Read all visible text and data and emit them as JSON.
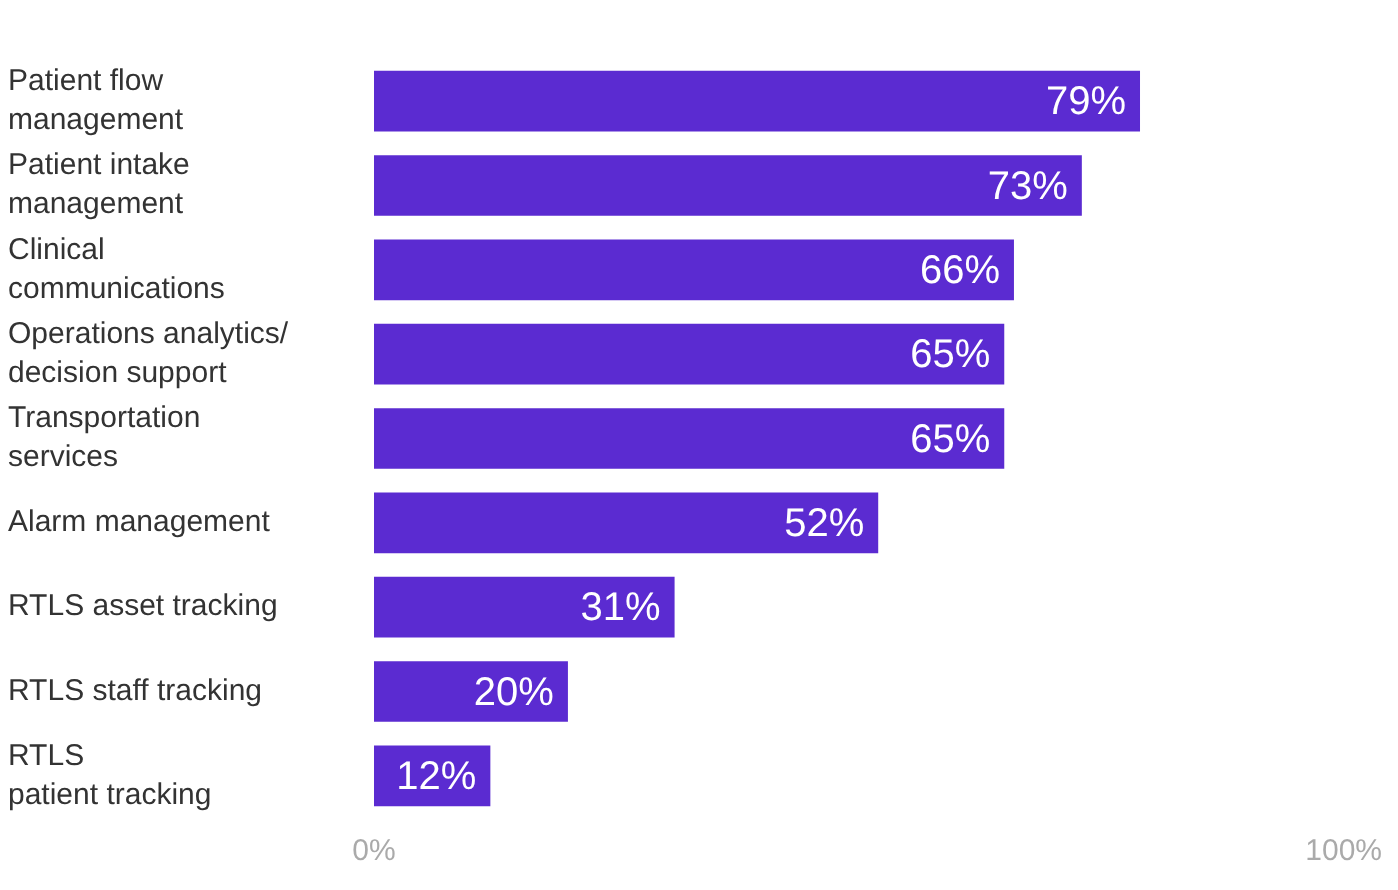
{
  "chart_data": {
    "type": "bar",
    "orientation": "horizontal",
    "categories": [
      "Patient flow\nmanagement",
      "Patient intake\nmanagement",
      "Clinical\ncommunications",
      "Operations analytics/\ndecision support",
      "Transportation\nservices",
      "Alarm management",
      "RTLS asset tracking",
      "RTLS staff tracking",
      "RTLS\npatient tracking"
    ],
    "values": [
      79,
      73,
      66,
      65,
      65,
      52,
      31,
      20,
      12
    ],
    "value_labels": [
      "79%",
      "73%",
      "66%",
      "65%",
      "65%",
      "52%",
      "31%",
      "20%",
      "12%"
    ],
    "color": "#5b2bd1",
    "xlim": [
      0,
      100
    ],
    "xticks": [
      {
        "value": 0,
        "label": "0%"
      },
      {
        "value": 100,
        "label": "100%"
      }
    ],
    "grid": false,
    "legend": false
  }
}
